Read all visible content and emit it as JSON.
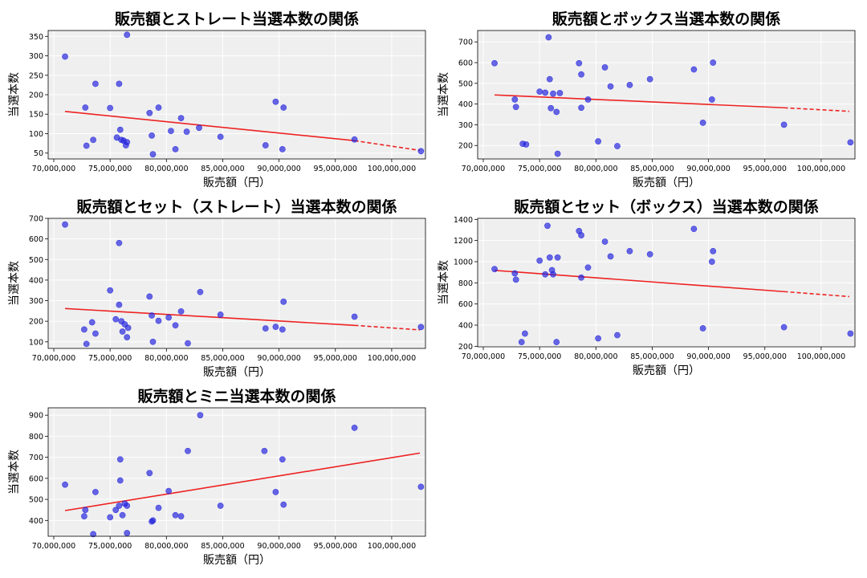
{
  "colors": {
    "plot_bg": "#efefef",
    "grid": "#ffffff",
    "point": "#2222dd",
    "trend": "#ee2222",
    "axis": "#000000"
  },
  "chart_data": [
    {
      "type": "scatter",
      "title": "販売額とストレート当選本数の関係",
      "xlabel": "販売額（円）",
      "ylabel": "当選本数",
      "xlim": [
        69500000,
        103000000
      ],
      "ylim": [
        35,
        365
      ],
      "xticks": [
        70000000,
        75000000,
        80000000,
        85000000,
        90000000,
        95000000,
        100000000
      ],
      "xtick_labels": [
        "70,000,000",
        "75,000,000",
        "80,000,000",
        "85,000,000",
        "90,000,000",
        "95,000,000",
        "100,000,000"
      ],
      "yticks": [
        50,
        100,
        150,
        200,
        250,
        300,
        350
      ],
      "ytick_labels": [
        "50",
        "100",
        "150",
        "200",
        "250",
        "300",
        "350"
      ],
      "grid": true,
      "trend": {
        "x0": 71000000,
        "y0": 157,
        "x1": 96700000,
        "y1": 82,
        "x2": 102500000,
        "y2": 57
      },
      "points": [
        [
          71000000,
          298
        ],
        [
          72800000,
          167
        ],
        [
          72900000,
          69
        ],
        [
          73500000,
          84
        ],
        [
          73700000,
          228
        ],
        [
          75000000,
          166
        ],
        [
          75600000,
          90
        ],
        [
          75800000,
          228
        ],
        [
          75900000,
          110
        ],
        [
          76000000,
          84
        ],
        [
          76200000,
          82
        ],
        [
          76400000,
          70
        ],
        [
          76500000,
          78
        ],
        [
          76500000,
          354
        ],
        [
          78500000,
          153
        ],
        [
          78700000,
          95
        ],
        [
          78800000,
          47
        ],
        [
          79300000,
          167
        ],
        [
          80400000,
          107
        ],
        [
          80800000,
          60
        ],
        [
          81300000,
          140
        ],
        [
          81800000,
          105
        ],
        [
          82900000,
          115
        ],
        [
          84800000,
          92
        ],
        [
          88800000,
          70
        ],
        [
          89700000,
          182
        ],
        [
          90300000,
          60
        ],
        [
          90400000,
          167
        ],
        [
          96700000,
          85
        ],
        [
          102600000,
          55
        ]
      ]
    },
    {
      "type": "scatter",
      "title": "販売額とボックス当選本数の関係",
      "xlabel": "販売額（円）",
      "ylabel": "当選本数",
      "xlim": [
        69500000,
        103000000
      ],
      "ylim": [
        135,
        755
      ],
      "xticks": [
        70000000,
        75000000,
        80000000,
        85000000,
        90000000,
        95000000,
        100000000
      ],
      "xtick_labels": [
        "70,000,000",
        "75,000,000",
        "80,000,000",
        "85,000,000",
        "90,000,000",
        "95,000,000",
        "100,000,000"
      ],
      "yticks": [
        200,
        300,
        400,
        500,
        600,
        700
      ],
      "ytick_labels": [
        "200",
        "300",
        "400",
        "500",
        "600",
        "700"
      ],
      "grid": true,
      "trend": {
        "x0": 71000000,
        "y0": 444,
        "x1": 96700000,
        "y1": 382,
        "x2": 102500000,
        "y2": 365
      },
      "points": [
        [
          71000000,
          597
        ],
        [
          72800000,
          422
        ],
        [
          72900000,
          386
        ],
        [
          73500000,
          208
        ],
        [
          73800000,
          205
        ],
        [
          75000000,
          460
        ],
        [
          75500000,
          455
        ],
        [
          75800000,
          722
        ],
        [
          75900000,
          520
        ],
        [
          76000000,
          380
        ],
        [
          76200000,
          450
        ],
        [
          76500000,
          362
        ],
        [
          76600000,
          160
        ],
        [
          76800000,
          453
        ],
        [
          78500000,
          597
        ],
        [
          78700000,
          543
        ],
        [
          78700000,
          382
        ],
        [
          79300000,
          422
        ],
        [
          80200000,
          220
        ],
        [
          80800000,
          577
        ],
        [
          81300000,
          485
        ],
        [
          81900000,
          197
        ],
        [
          83000000,
          492
        ],
        [
          84800000,
          520
        ],
        [
          88700000,
          567
        ],
        [
          89500000,
          310
        ],
        [
          90300000,
          422
        ],
        [
          90400000,
          600
        ],
        [
          96700000,
          300
        ],
        [
          102600000,
          215
        ]
      ]
    },
    {
      "type": "scatter",
      "title": "販売額とセット（ストレート）当選本数の関係",
      "xlabel": "販売額（円）",
      "ylabel": "当選本数",
      "xlim": [
        69500000,
        103000000
      ],
      "ylim": [
        68,
        700
      ],
      "xticks": [
        70000000,
        75000000,
        80000000,
        85000000,
        90000000,
        95000000,
        100000000
      ],
      "xtick_labels": [
        "70,000,000",
        "75,000,000",
        "80,000,000",
        "85,000,000",
        "90,000,000",
        "95,000,000",
        "100,000,000"
      ],
      "yticks": [
        100,
        200,
        300,
        400,
        500,
        600,
        700
      ],
      "ytick_labels": [
        "100",
        "200",
        "300",
        "400",
        "500",
        "600",
        "700"
      ],
      "grid": true,
      "trend": {
        "x0": 71000000,
        "y0": 262,
        "x1": 96700000,
        "y1": 180,
        "x2": 102500000,
        "y2": 158
      },
      "points": [
        [
          71000000,
          670
        ],
        [
          72700000,
          160
        ],
        [
          72900000,
          90
        ],
        [
          73400000,
          195
        ],
        [
          73700000,
          140
        ],
        [
          75000000,
          350
        ],
        [
          75500000,
          210
        ],
        [
          75800000,
          580
        ],
        [
          75800000,
          280
        ],
        [
          76000000,
          200
        ],
        [
          76100000,
          150
        ],
        [
          76300000,
          185
        ],
        [
          76500000,
          122
        ],
        [
          76600000,
          168
        ],
        [
          78500000,
          320
        ],
        [
          78700000,
          228
        ],
        [
          78800000,
          100
        ],
        [
          79300000,
          202
        ],
        [
          80200000,
          218
        ],
        [
          80800000,
          180
        ],
        [
          81300000,
          248
        ],
        [
          81900000,
          93
        ],
        [
          83000000,
          342
        ],
        [
          84800000,
          232
        ],
        [
          88800000,
          165
        ],
        [
          89700000,
          173
        ],
        [
          90300000,
          160
        ],
        [
          90400000,
          295
        ],
        [
          96700000,
          222
        ],
        [
          102600000,
          172
        ]
      ]
    },
    {
      "type": "scatter",
      "title": "販売額とセット（ボックス）当選本数の関係",
      "xlabel": "販売額（円）",
      "ylabel": "当選本数",
      "xlim": [
        69500000,
        103000000
      ],
      "ylim": [
        195,
        1410
      ],
      "xticks": [
        70000000,
        75000000,
        80000000,
        85000000,
        90000000,
        95000000,
        100000000
      ],
      "xtick_labels": [
        "70,000,000",
        "75,000,000",
        "80,000,000",
        "85,000,000",
        "90,000,000",
        "95,000,000",
        "100,000,000"
      ],
      "yticks": [
        200,
        400,
        600,
        800,
        1000,
        1200,
        1400
      ],
      "ytick_labels": [
        "200",
        "400",
        "600",
        "800",
        "1000",
        "1200",
        "1400"
      ],
      "grid": true,
      "trend": {
        "x0": 71000000,
        "y0": 918,
        "x1": 96700000,
        "y1": 717,
        "x2": 102500000,
        "y2": 670
      },
      "points": [
        [
          71000000,
          930
        ],
        [
          72800000,
          890
        ],
        [
          72900000,
          830
        ],
        [
          73400000,
          240
        ],
        [
          73700000,
          320
        ],
        [
          75000000,
          1010
        ],
        [
          75500000,
          880
        ],
        [
          75700000,
          1340
        ],
        [
          75900000,
          1040
        ],
        [
          76100000,
          920
        ],
        [
          76200000,
          880
        ],
        [
          76500000,
          240
        ],
        [
          76600000,
          1040
        ],
        [
          78500000,
          1290
        ],
        [
          78700000,
          1250
        ],
        [
          78700000,
          850
        ],
        [
          79300000,
          945
        ],
        [
          80200000,
          275
        ],
        [
          80800000,
          1190
        ],
        [
          81300000,
          1050
        ],
        [
          81900000,
          305
        ],
        [
          83000000,
          1100
        ],
        [
          84800000,
          1070
        ],
        [
          88700000,
          1310
        ],
        [
          89500000,
          370
        ],
        [
          90300000,
          1000
        ],
        [
          90400000,
          1100
        ],
        [
          96700000,
          380
        ],
        [
          102600000,
          320
        ]
      ]
    },
    {
      "type": "scatter",
      "title": "販売額とミニ当選本数の関係",
      "xlabel": "販売額（円）",
      "ylabel": "当選本数",
      "xlim": [
        69500000,
        103000000
      ],
      "ylim": [
        325,
        935
      ],
      "xticks": [
        70000000,
        75000000,
        80000000,
        85000000,
        90000000,
        95000000,
        100000000
      ],
      "xtick_labels": [
        "70,000,000",
        "75,000,000",
        "80,000,000",
        "85,000,000",
        "90,000,000",
        "95,000,000",
        "100,000,000"
      ],
      "yticks": [
        400,
        500,
        600,
        700,
        800,
        900
      ],
      "ytick_labels": [
        "400",
        "500",
        "600",
        "700",
        "800",
        "900"
      ],
      "grid": true,
      "trend": {
        "x0": 71000000,
        "y0": 447,
        "x1": 102500000,
        "y1": 720
      },
      "points": [
        [
          71000000,
          570
        ],
        [
          72700000,
          420
        ],
        [
          72800000,
          450
        ],
        [
          73500000,
          335
        ],
        [
          73700000,
          535
        ],
        [
          75000000,
          415
        ],
        [
          75500000,
          450
        ],
        [
          75800000,
          470
        ],
        [
          75900000,
          590
        ],
        [
          75900000,
          690
        ],
        [
          76100000,
          425
        ],
        [
          76300000,
          480
        ],
        [
          76500000,
          470
        ],
        [
          76500000,
          340
        ],
        [
          78500000,
          625
        ],
        [
          78700000,
          395
        ],
        [
          78800000,
          400
        ],
        [
          79300000,
          460
        ],
        [
          80200000,
          540
        ],
        [
          80800000,
          425
        ],
        [
          81300000,
          420
        ],
        [
          81900000,
          730
        ],
        [
          83000000,
          900
        ],
        [
          84800000,
          470
        ],
        [
          88700000,
          730
        ],
        [
          89700000,
          535
        ],
        [
          90300000,
          690
        ],
        [
          90400000,
          475
        ],
        [
          96700000,
          840
        ],
        [
          102600000,
          560
        ]
      ]
    }
  ]
}
